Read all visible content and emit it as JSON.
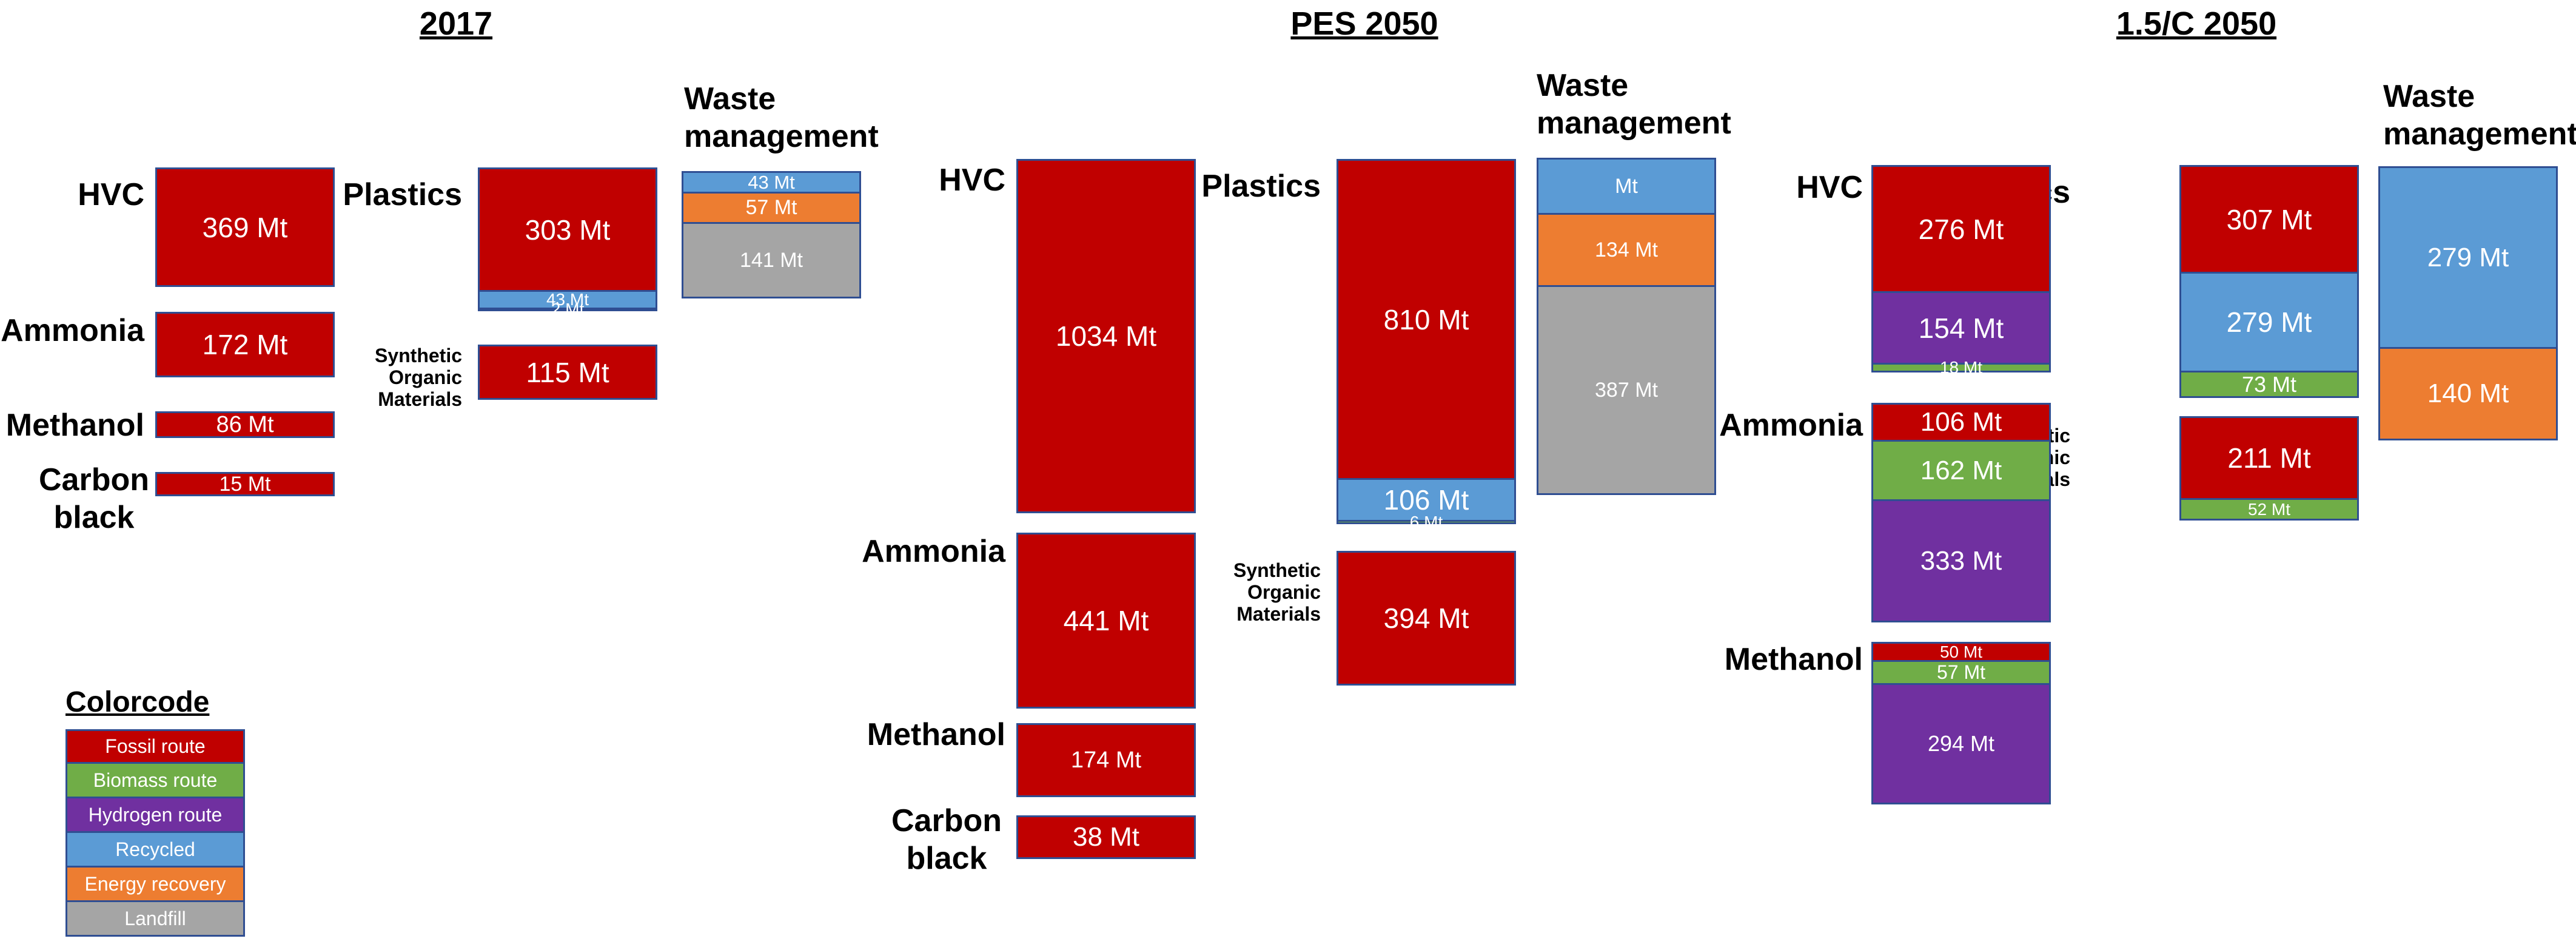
{
  "colors": {
    "fossil": "#c00000",
    "biomass": "#70ad47",
    "hydrogen": "#7030a0",
    "recycled": "#5b9bd5",
    "energy": "#ed7d31",
    "landfill": "#a5a5a5"
  },
  "titles": [
    "2017",
    "PES 2050",
    "1.5/C 2050"
  ],
  "labels": {
    "hvc": "HVC",
    "plastics": "Plastics",
    "ammonia": "Ammonia",
    "methanol": "Methanol",
    "carbon_black": "Carbon black",
    "synthetic": "Synthetic Organic Materials",
    "waste": "Waste management"
  },
  "legend": {
    "title": "Colorcode",
    "items": [
      {
        "label": "Fossil route",
        "color": "fossil"
      },
      {
        "label": "Biomass route",
        "color": "biomass"
      },
      {
        "label": "Hydrogen route",
        "color": "hydrogen"
      },
      {
        "label": "Recycled",
        "color": "recycled"
      },
      {
        "label": "Energy recovery",
        "color": "energy"
      },
      {
        "label": "Landfill",
        "color": "landfill"
      }
    ]
  },
  "stacks": [
    {
      "name": "y2017-hvc",
      "segments": [
        {
          "label": "369 Mt",
          "value": 369,
          "color": "fossil"
        }
      ]
    },
    {
      "name": "y2017-ammonia",
      "segments": [
        {
          "label": "172 Mt",
          "value": 172,
          "color": "fossil"
        }
      ]
    },
    {
      "name": "y2017-methanol",
      "segments": [
        {
          "label": "86 Mt",
          "value": 86,
          "color": "fossil"
        }
      ]
    },
    {
      "name": "y2017-carbon-black",
      "segments": [
        {
          "label": "15 Mt",
          "value": 15,
          "color": "fossil"
        }
      ]
    },
    {
      "name": "y2017-plastics",
      "segments": [
        {
          "label": "303 Mt",
          "value": 303,
          "color": "fossil"
        },
        {
          "label": "43 Mt",
          "value": 43,
          "color": "recycled"
        },
        {
          "label": "2 Mt",
          "value": 2,
          "color": "biomass"
        }
      ]
    },
    {
      "name": "y2017-synthetic",
      "segments": [
        {
          "label": "115 Mt",
          "value": 115,
          "color": "fossil"
        }
      ]
    },
    {
      "name": "y2017-waste",
      "segments": [
        {
          "label": "43 Mt",
          "value": 43,
          "color": "recycled"
        },
        {
          "label": "57 Mt",
          "value": 57,
          "color": "energy"
        },
        {
          "label": "141 Mt",
          "value": 141,
          "color": "landfill"
        }
      ]
    },
    {
      "name": "pes-hvc",
      "segments": [
        {
          "label": "1034 Mt",
          "value": 1034,
          "color": "fossil"
        }
      ]
    },
    {
      "name": "pes-ammonia",
      "segments": [
        {
          "label": "441 Mt",
          "value": 441,
          "color": "fossil"
        }
      ]
    },
    {
      "name": "pes-methanol",
      "segments": [
        {
          "label": "174 Mt",
          "value": 174,
          "color": "fossil"
        }
      ]
    },
    {
      "name": "pes-carbon-black",
      "segments": [
        {
          "label": "38 Mt",
          "value": 38,
          "color": "fossil"
        }
      ]
    },
    {
      "name": "pes-plastics",
      "segments": [
        {
          "label": "810 Mt",
          "value": 810,
          "color": "fossil"
        },
        {
          "label": "106 Mt",
          "value": 106,
          "color": "recycled"
        },
        {
          "label": "6 Mt",
          "value": 6,
          "color": "biomass"
        }
      ]
    },
    {
      "name": "pes-synthetic",
      "segments": [
        {
          "label": "394 Mt",
          "value": 394,
          "color": "fossil"
        }
      ]
    },
    {
      "name": "pes-waste",
      "segments": [
        {
          "label": "Mt",
          "value": 106,
          "color": "recycled"
        },
        {
          "label": "134 Mt",
          "value": 134,
          "color": "energy"
        },
        {
          "label": "387 Mt",
          "value": 387,
          "color": "landfill"
        }
      ]
    },
    {
      "name": "c15-hvc",
      "segments": [
        {
          "label": "276 Mt",
          "value": 276,
          "color": "fossil"
        },
        {
          "label": "154 Mt",
          "value": 154,
          "color": "hydrogen"
        },
        {
          "label": "18 Mt",
          "value": 18,
          "color": "biomass"
        }
      ]
    },
    {
      "name": "c15-ammonia",
      "segments": [
        {
          "label": "106 Mt",
          "value": 106,
          "color": "fossil"
        },
        {
          "label": "162 Mt",
          "value": 162,
          "color": "biomass"
        },
        {
          "label": "333 Mt",
          "value": 333,
          "color": "hydrogen"
        }
      ]
    },
    {
      "name": "c15-methanol",
      "segments": [
        {
          "label": "50 Mt",
          "value": 50,
          "color": "fossil"
        },
        {
          "label": "57 Mt",
          "value": 57,
          "color": "biomass"
        },
        {
          "label": "294 Mt",
          "value": 294,
          "color": "hydrogen"
        }
      ]
    },
    {
      "name": "c15-plastics",
      "segments": [
        {
          "label": "307 Mt",
          "value": 307,
          "color": "fossil"
        },
        {
          "label": "279 Mt",
          "value": 279,
          "color": "recycled"
        },
        {
          "label": "73 Mt",
          "value": 73,
          "color": "biomass"
        }
      ]
    },
    {
      "name": "c15-synthetic",
      "segments": [
        {
          "label": "211 Mt",
          "value": 211,
          "color": "fossil"
        },
        {
          "label": "52 Mt",
          "value": 52,
          "color": "biomass"
        }
      ]
    },
    {
      "name": "c15-waste",
      "segments": [
        {
          "label": "279 Mt",
          "value": 279,
          "color": "recycled"
        },
        {
          "label": "140 Mt",
          "value": 140,
          "color": "energy"
        }
      ]
    }
  ]
}
